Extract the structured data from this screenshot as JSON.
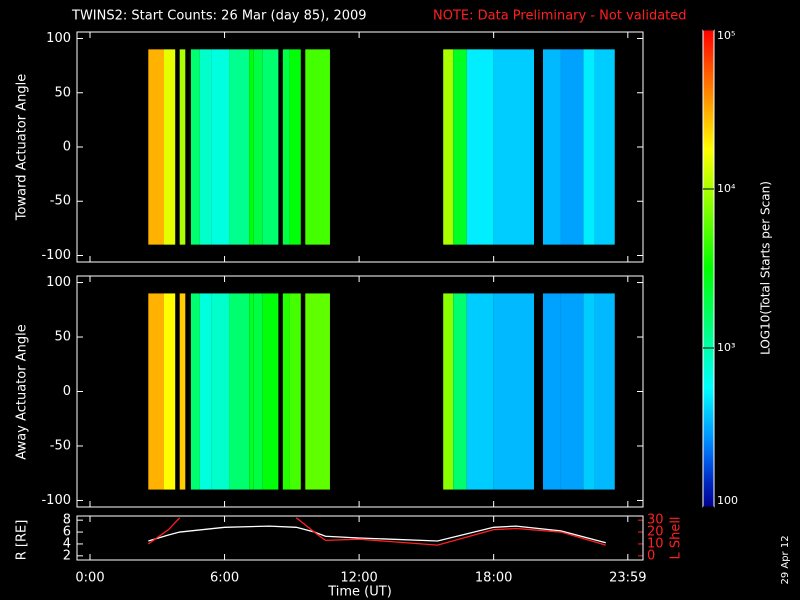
{
  "footer": "29 Apr 12",
  "chart_data": [
    {
      "type": "heatmap",
      "title": "TWINS2: Start Counts: 26 Mar (day  85), 2009",
      "note": "NOTE: Data Preliminary - Not validated",
      "y_label": "Toward Actuator Angle",
      "xlim": [
        -0.58,
        24.66
      ],
      "ylim": [
        -106,
        106
      ],
      "yticks": [
        -100,
        -50,
        0,
        50,
        100
      ],
      "y_range": [
        -90,
        90
      ],
      "edges": [
        2.6,
        3.3,
        3.8,
        4.0,
        4.25,
        4.5,
        4.9,
        5.4,
        6.2,
        7.1,
        7.3,
        7.7,
        8.4,
        8.6,
        8.9,
        9.4,
        9.6,
        10.7,
        15.75,
        16.2,
        16.8,
        18,
        19.8,
        20.2,
        21,
        22,
        22.5,
        23.4
      ],
      "values": [
        30000,
        15000,
        null,
        10000,
        null,
        1500,
        800,
        700,
        1200,
        3000,
        2000,
        1500,
        null,
        2000,
        3000,
        null,
        5000,
        null,
        10000,
        2500,
        500,
        400,
        null,
        350,
        300,
        500,
        400
      ],
      "colorbar": {
        "label": "LOG10(Total Starts per Scan)",
        "log": true,
        "lim": [
          100,
          100000
        ],
        "ticks": [
          100,
          {
            "value": 1000,
            "label": "10³"
          },
          {
            "value": 10000,
            "label": "10⁴"
          },
          {
            "value": 100000,
            "label": "10⁵"
          }
        ]
      }
    },
    {
      "type": "heatmap",
      "y_label": "Away Actuator Angle",
      "xlim": [
        -0.58,
        24.66
      ],
      "ylim": [
        -106,
        106
      ],
      "yticks": [
        -100,
        -50,
        0,
        50,
        100
      ],
      "y_range": [
        -90,
        90
      ],
      "edges": [
        2.6,
        3.3,
        3.8,
        4.0,
        4.25,
        4.5,
        4.9,
        5.4,
        6.2,
        7.1,
        7.3,
        7.7,
        8.4,
        8.6,
        8.9,
        9.4,
        9.6,
        10.7,
        15.75,
        16.2,
        16.8,
        18,
        19.8,
        20.2,
        21,
        22,
        22.5,
        23.4
      ],
      "values": [
        30000,
        18000,
        null,
        25000,
        null,
        1500,
        700,
        800,
        1500,
        2500,
        2000,
        3000,
        null,
        4000,
        5000,
        null,
        6000,
        null,
        8000,
        1500,
        400,
        350,
        null,
        300,
        300,
        400,
        350
      ]
    },
    {
      "type": "line",
      "x_label": "Time (UT)",
      "y_label": "R [RE]",
      "y2_label": "L Shell",
      "xlim": [
        -0.58,
        24.66
      ],
      "xticks": [
        {
          "value": 0,
          "label": "0:00"
        },
        {
          "value": 6,
          "label": "6:00"
        },
        {
          "value": 12,
          "label": "12:00"
        },
        {
          "value": 18,
          "label": "18:00"
        },
        {
          "value": 23.983,
          "label": "23:59"
        }
      ],
      "ylim": [
        1.3,
        8.7
      ],
      "yticks": [
        2,
        4,
        6,
        8
      ],
      "y2lim": [
        -3.5,
        33.5
      ],
      "y2ticks": [
        0,
        10,
        20,
        30
      ],
      "x": [
        2.6,
        3.5,
        4.0,
        6,
        8,
        9.2,
        10,
        10.5,
        12,
        15.5,
        18,
        19,
        21,
        23
      ],
      "series": [
        {
          "name": "R",
          "color": "#ffffff",
          "values": [
            4.5,
            5.5,
            6,
            6.8,
            7,
            6.8,
            6,
            5.3,
            5.0,
            4.5,
            6.8,
            7,
            6.2,
            4.2
          ]
        },
        {
          "name": "L Shell",
          "color": "#ff2020",
          "axis": "y2",
          "values": [
            10,
            22,
            32,
            null,
            null,
            32,
            20,
            13,
            14,
            9,
            22,
            23,
            20,
            9
          ]
        }
      ]
    }
  ]
}
